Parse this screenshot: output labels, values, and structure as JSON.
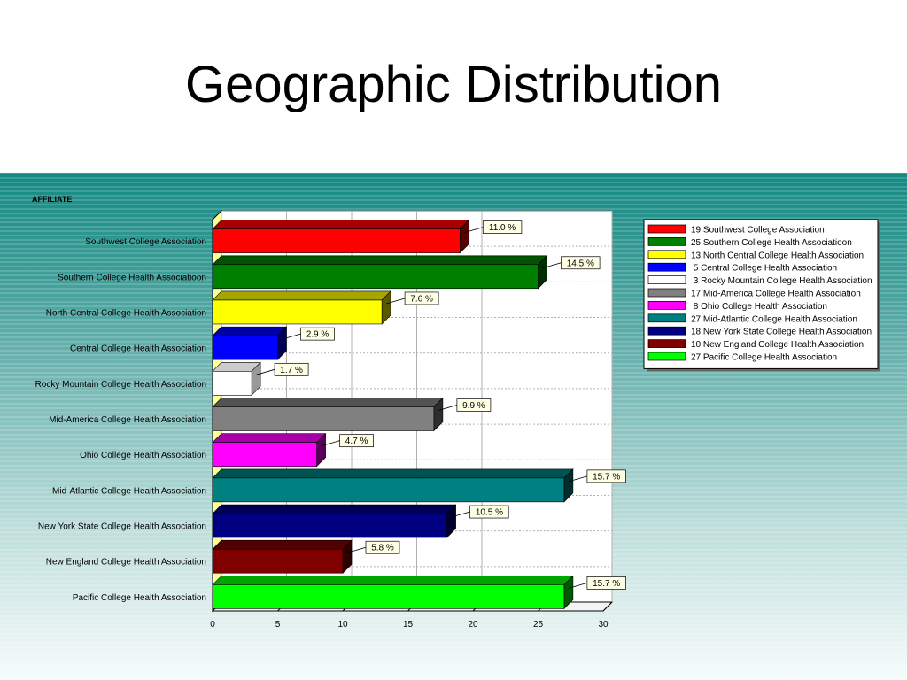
{
  "slide": {
    "title": "Geographic Distribution"
  },
  "chart_data": {
    "type": "bar",
    "orientation": "horizontal",
    "style": "3d",
    "ylabel": "AFFILIATE",
    "xlim": [
      0,
      30
    ],
    "xticks": [
      0,
      5,
      10,
      15,
      20,
      25,
      30
    ],
    "grid": true,
    "legend_position": "right",
    "categories": [
      "Southwest College Association",
      "Southern College Health Associatioon",
      "North Central College Health Association",
      "Central College Health Association",
      "Rocky Mountain College Health Association",
      "Mid-America College Health Association",
      "Ohio College Health Association",
      "Mid-Atlantic College Health Association",
      "New York State College Health Association",
      "New England College Health Association",
      "Pacific College Health Association"
    ],
    "values": [
      19,
      25,
      13,
      5,
      3,
      17,
      8,
      27,
      18,
      10,
      27
    ],
    "data_labels": [
      "11.0 %",
      "14.5 %",
      "7.6 %",
      "2.9 %",
      "1.7 %",
      "9.9 %",
      "4.7 %",
      "15.7 %",
      "10.5 %",
      "5.8 %",
      "15.7 %"
    ],
    "colors": [
      "#ff0000",
      "#008000",
      "#ffff00",
      "#0000ff",
      "#ffffff",
      "#808080",
      "#ff00ff",
      "#008080",
      "#000080",
      "#800000",
      "#00ff00"
    ],
    "legend": [
      "19 Southwest College Association",
      "25 Southern College Health Associatioon",
      "13 North Central College Health Association",
      " 5 Central College Health Association",
      " 3 Rocky Mountain College Health Association",
      "17 Mid-America College Health Association",
      " 8 Ohio College Health Association",
      "27 Mid-Atlantic College Health Association",
      "18 New York State College Health Association",
      "10 New England College Health Association",
      "27 Pacific College Health Association"
    ]
  }
}
